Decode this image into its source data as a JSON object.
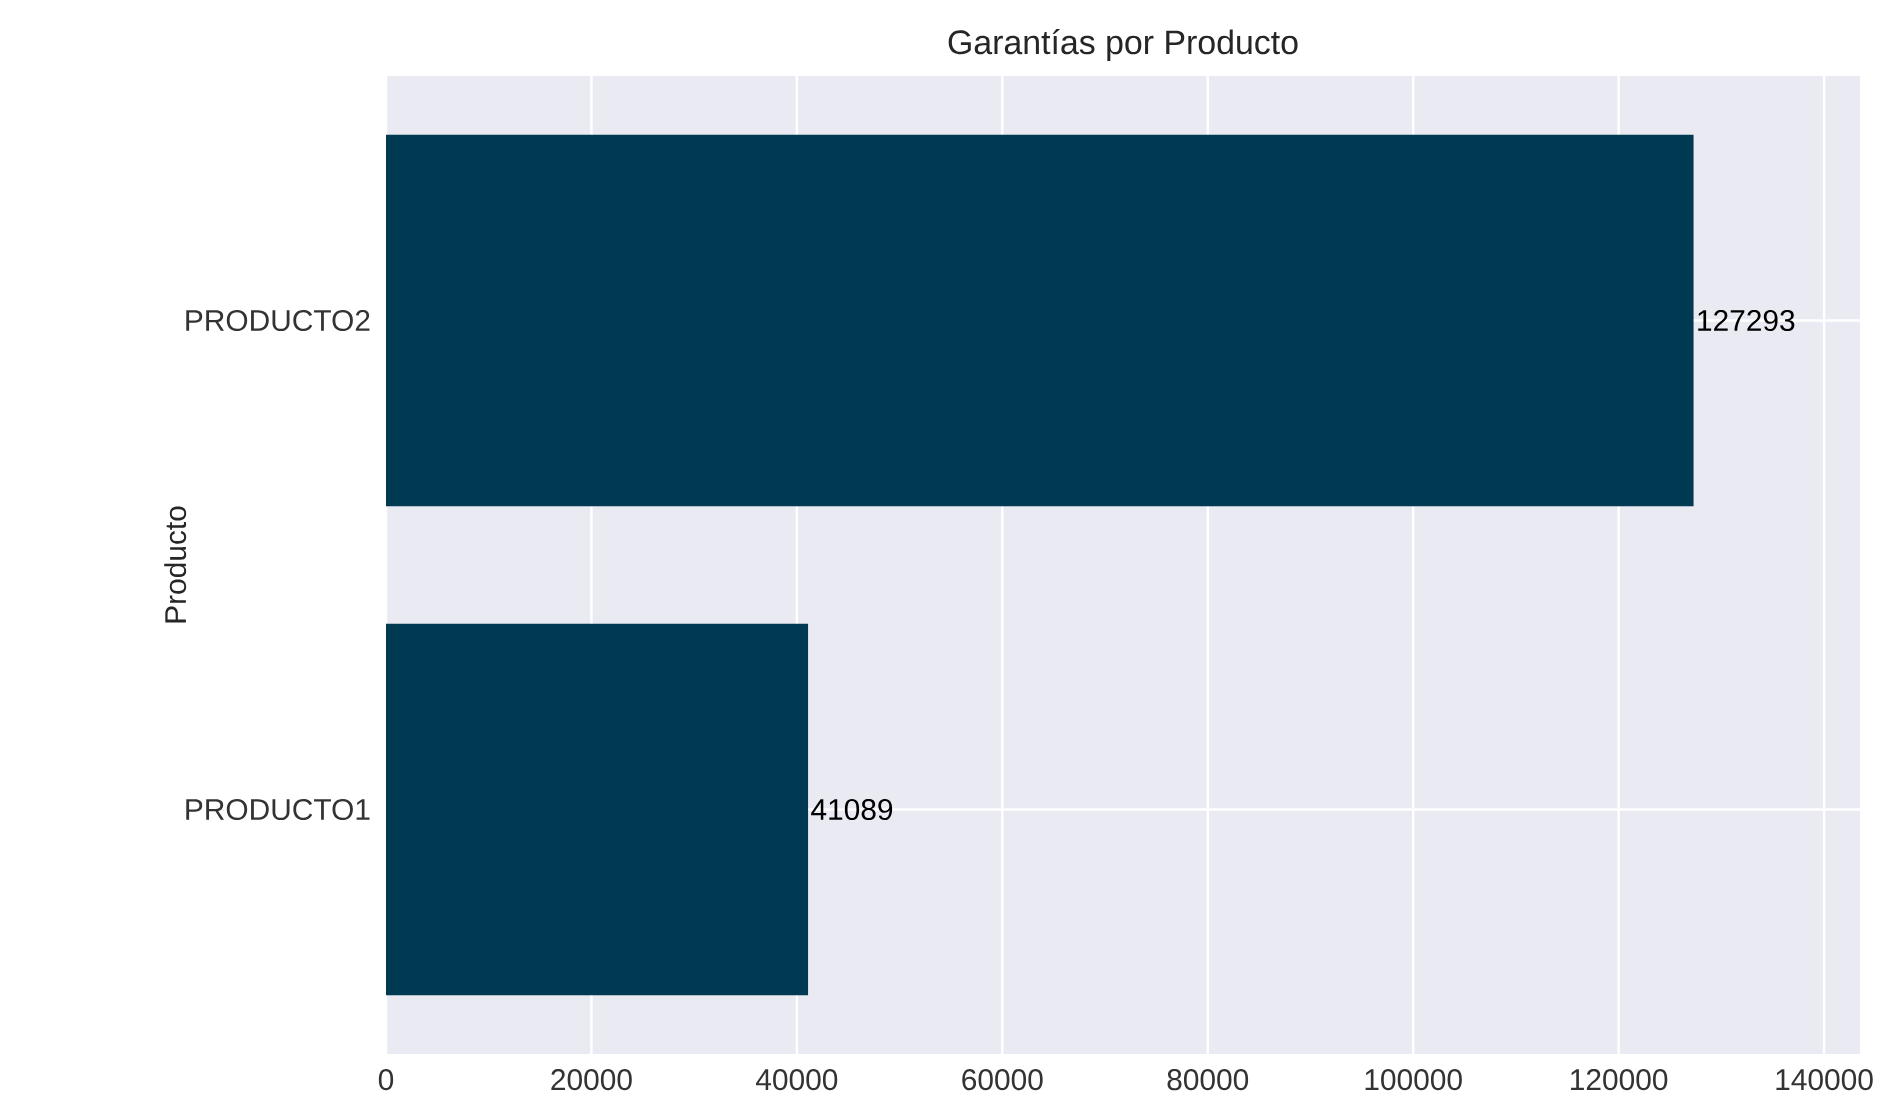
{
  "chart_data": {
    "type": "bar",
    "orientation": "horizontal",
    "title": "Garantías por Producto",
    "ylabel": "Producto",
    "categories": [
      "PRODUCTO2",
      "PRODUCTO1"
    ],
    "values": [
      127293,
      41089
    ],
    "color": "#003a52",
    "xlim": [
      0,
      143500
    ],
    "xticks": [
      0,
      20000,
      40000,
      60000,
      80000,
      100000,
      120000,
      140000
    ],
    "grid": true,
    "data_labels": true
  }
}
